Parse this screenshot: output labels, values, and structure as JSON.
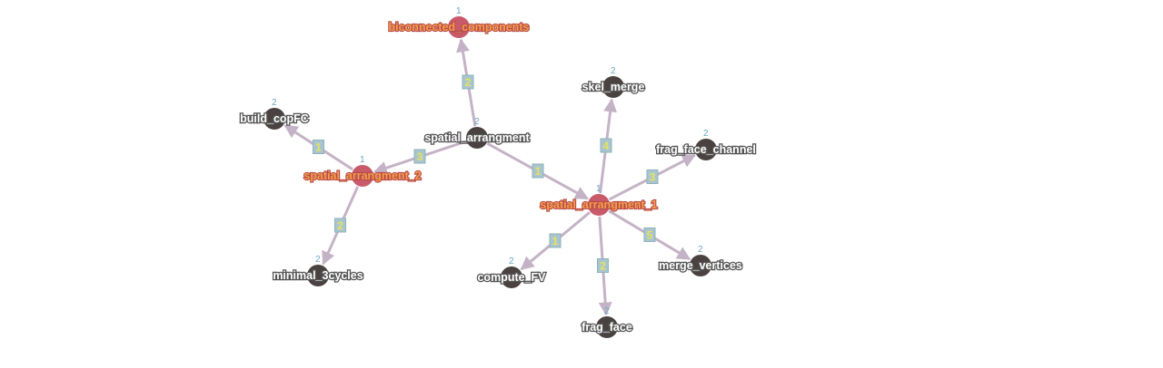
{
  "colors": {
    "edge": "#c4b3c6",
    "node_normal": "#4a4240",
    "node_highlight": "#c85a6a",
    "label_highlight": "#f5a04a",
    "count": "#6aa5c2"
  },
  "nodes": [
    {
      "id": "biconnected_components",
      "label": "biconnected_components",
      "count": "1",
      "highlight": true
    },
    {
      "id": "skel_merge",
      "label": "skel_merge",
      "count": "2",
      "highlight": false
    },
    {
      "id": "build_copFC",
      "label": "build_copFC",
      "count": "2",
      "highlight": false
    },
    {
      "id": "spatial_arrangment",
      "label": "spatial_arrangment",
      "count": "2",
      "highlight": false
    },
    {
      "id": "frag_face_channel",
      "label": "frag_face_channel",
      "count": "2",
      "highlight": false
    },
    {
      "id": "spatial_arrangment_2",
      "label": "spatial_arrangment_2",
      "count": "1",
      "highlight": true
    },
    {
      "id": "spatial_arrangment_1",
      "label": "spatial_arrangment_1",
      "count": "1",
      "highlight": true
    },
    {
      "id": "minimal_3cycles",
      "label": "minimal_3cycles",
      "count": "2",
      "highlight": false
    },
    {
      "id": "merge_vertices",
      "label": "merge_vertices",
      "count": "2",
      "highlight": false
    },
    {
      "id": "compute_FV",
      "label": "compute_FV",
      "count": "2",
      "highlight": false
    },
    {
      "id": "frag_face",
      "label": "frag_face",
      "count": "2",
      "highlight": false
    }
  ],
  "edges": [
    {
      "from": "spatial_arrangment",
      "to": "biconnected_components",
      "label": "2"
    },
    {
      "from": "spatial_arrangment",
      "to": "spatial_arrangment_2",
      "label": "3"
    },
    {
      "from": "spatial_arrangment",
      "to": "spatial_arrangment_1",
      "label": "1"
    },
    {
      "from": "spatial_arrangment_2",
      "to": "build_copFC",
      "label": "1"
    },
    {
      "from": "spatial_arrangment_2",
      "to": "minimal_3cycles",
      "label": "2"
    },
    {
      "from": "spatial_arrangment_1",
      "to": "skel_merge",
      "label": "4"
    },
    {
      "from": "spatial_arrangment_1",
      "to": "frag_face_channel",
      "label": "3"
    },
    {
      "from": "spatial_arrangment_1",
      "to": "merge_vertices",
      "label": "5"
    },
    {
      "from": "spatial_arrangment_1",
      "to": "compute_FV",
      "label": "1"
    },
    {
      "from": "spatial_arrangment_1",
      "to": "frag_face",
      "label": "2"
    }
  ]
}
